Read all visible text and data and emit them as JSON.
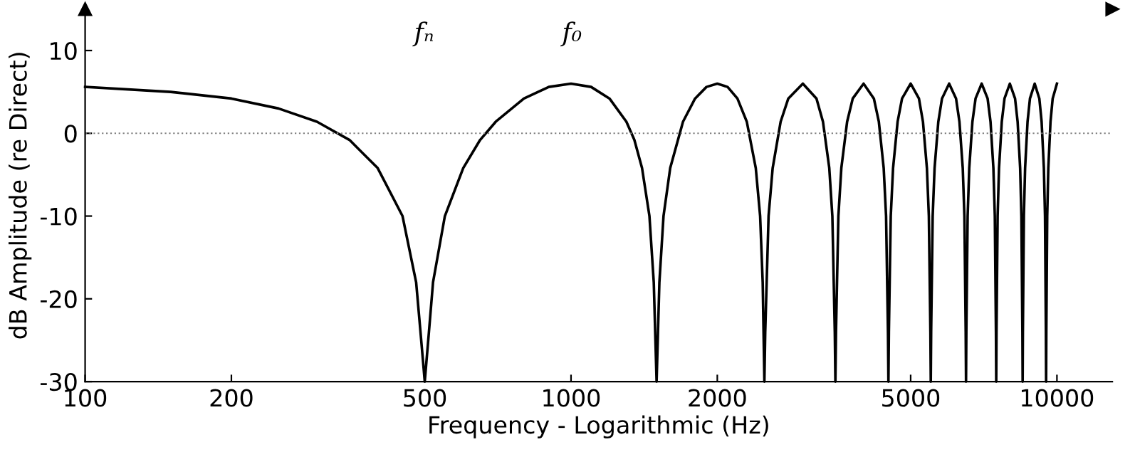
{
  "chart_data": {
    "type": "line",
    "xlabel": "Frequency - Logarithmic (Hz)",
    "ylabel": "dB Amplitude (re Direct)",
    "log": "x",
    "xlim": [
      100,
      13000
    ],
    "xticks": [
      100,
      200,
      500,
      1000,
      2000,
      5000,
      10000
    ],
    "ylim": [
      -30,
      15
    ],
    "yticks": [
      -30,
      -20,
      -10,
      0,
      10
    ],
    "grid": false,
    "marker": "none",
    "line_style": "solid",
    "ref_lines": [
      {
        "axis": "y",
        "value": 0,
        "color": "#808080",
        "line_style": "dotted"
      }
    ],
    "annotations": [
      "fₙ",
      "f₀"
    ],
    "series": [
      {
        "color": "#000000",
        "x": [
          100,
          150,
          200,
          250,
          300,
          350,
          400,
          450,
          480,
          490,
          500,
          510,
          520,
          550,
          600,
          650,
          700,
          800,
          900,
          1000,
          1100,
          1200,
          1300,
          1350,
          1400,
          1450,
          1480,
          1490,
          1500,
          1510,
          1520,
          1550,
          1600,
          1700,
          1800,
          1900,
          2000,
          2100,
          2200,
          2300,
          2400,
          2450,
          2480,
          2490,
          2500,
          2510,
          2550,
          2600,
          2700,
          2800,
          3000,
          3200,
          3300,
          3400,
          3450,
          3490,
          3500,
          3510,
          3550,
          3600,
          3700,
          3800,
          4000,
          4200,
          4300,
          4400,
          4450,
          4490,
          4500,
          4510,
          4550,
          4600,
          4700,
          4800,
          5000,
          5200,
          5300,
          5400,
          5450,
          5490,
          5500,
          5510,
          5550,
          5600,
          5700,
          5800,
          6000,
          6200,
          6300,
          6400,
          6450,
          6490,
          6500,
          6510,
          6550,
          6600,
          6700,
          6800,
          7000,
          7200,
          7300,
          7400,
          7450,
          7490,
          7500,
          7510,
          7550,
          7600,
          7700,
          7800,
          8000,
          8200,
          8300,
          8400,
          8450,
          8490,
          8500,
          8510,
          8550,
          8600,
          8700,
          8800,
          9000,
          9200,
          9300,
          9400,
          9450,
          9490,
          9500,
          9510,
          9550,
          9600,
          9700,
          9800,
          10000
        ],
        "values": [
          5.6,
          5,
          4.2,
          3,
          1.4,
          -0.8,
          -4.2,
          -10,
          -18,
          -24,
          -30,
          -24,
          -18,
          -10,
          -4.2,
          -0.8,
          1.4,
          4.2,
          5.6,
          6,
          5.6,
          4.2,
          1.4,
          -0.8,
          -4.2,
          -10,
          -18,
          -24,
          -30,
          -24,
          -18,
          -10,
          -4.2,
          1.4,
          4.2,
          5.6,
          6,
          5.6,
          4.2,
          1.4,
          -4.2,
          -10,
          -18,
          -24,
          -30,
          -24,
          -10,
          -4.2,
          1.4,
          4.2,
          6,
          4.2,
          1.4,
          -4.2,
          -10,
          -24,
          -30,
          -24,
          -10,
          -4.2,
          1.4,
          4.2,
          6,
          4.2,
          1.4,
          -4.2,
          -10,
          -24,
          -30,
          -24,
          -10,
          -4.2,
          1.4,
          4.2,
          6,
          4.2,
          1.4,
          -4.2,
          -10,
          -24,
          -30,
          -24,
          -10,
          -4.2,
          1.4,
          4.2,
          6,
          4.2,
          1.4,
          -4.2,
          -10,
          -24,
          -30,
          -24,
          -10,
          -4.2,
          1.4,
          4.2,
          6,
          4.2,
          1.4,
          -4.2,
          -10,
          -24,
          -30,
          -24,
          -10,
          -4.2,
          1.4,
          4.2,
          6,
          4.2,
          1.4,
          -4.2,
          -10,
          -24,
          -30,
          -24,
          -10,
          -4.2,
          1.4,
          4.2,
          6,
          4.2,
          1.4,
          -4.2,
          -10,
          -24,
          -30,
          -24,
          -10,
          -4.2,
          1.4,
          4.2,
          6
        ]
      }
    ]
  }
}
